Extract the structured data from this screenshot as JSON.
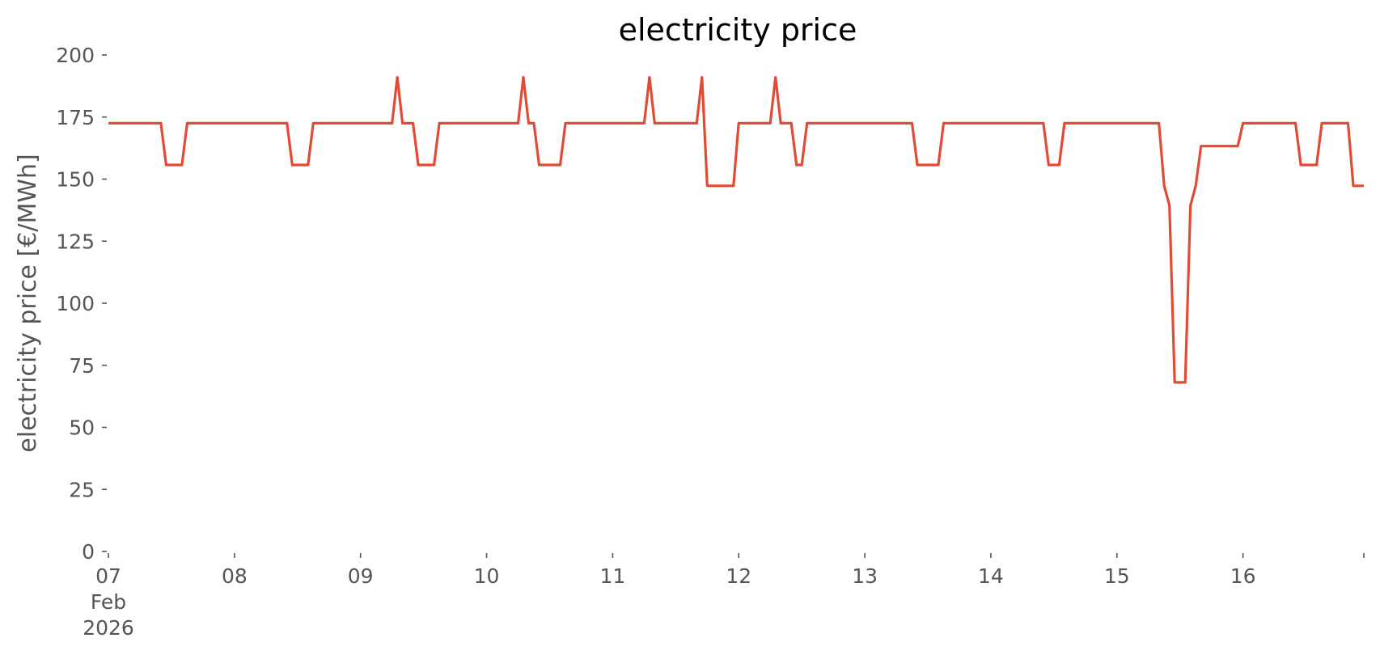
{
  "chart_data": {
    "type": "line",
    "title": "electricity price",
    "xlabel": "",
    "ylabel": "electricity price [€/MWh]",
    "ylim": [
      0,
      200
    ],
    "xlim": [
      "2026-02-07 00:00",
      "2026-02-16 23:00"
    ],
    "grid": false,
    "line_color": "#E24A33",
    "y_ticks": [
      "0",
      "25",
      "50",
      "75",
      "100",
      "125",
      "150",
      "175",
      "200"
    ],
    "x_ticks": [
      {
        "day": "07",
        "month": "Feb",
        "year": "2026"
      },
      {
        "day": "08"
      },
      {
        "day": "09"
      },
      {
        "day": "10"
      },
      {
        "day": "11"
      },
      {
        "day": "12"
      },
      {
        "day": "13"
      },
      {
        "day": "14"
      },
      {
        "day": "15"
      },
      {
        "day": "16"
      }
    ],
    "series": [
      {
        "points": [
          [
            "2026-02-07 00:00",
            172.5
          ],
          [
            "2026-02-07 10:00",
            172.5
          ],
          [
            "2026-02-07 11:00",
            155.7
          ],
          [
            "2026-02-07 14:00",
            155.7
          ],
          [
            "2026-02-07 15:00",
            172.5
          ],
          [
            "2026-02-08 10:00",
            172.5
          ],
          [
            "2026-02-08 11:00",
            155.7
          ],
          [
            "2026-02-08 14:00",
            155.7
          ],
          [
            "2026-02-08 15:00",
            172.5
          ],
          [
            "2026-02-09 06:00",
            172.5
          ],
          [
            "2026-02-09 07:00",
            191.0
          ],
          [
            "2026-02-09 08:00",
            172.5
          ],
          [
            "2026-02-09 10:00",
            172.5
          ],
          [
            "2026-02-09 11:00",
            155.7
          ],
          [
            "2026-02-09 14:00",
            155.7
          ],
          [
            "2026-02-09 15:00",
            172.5
          ],
          [
            "2026-02-10 06:00",
            172.5
          ],
          [
            "2026-02-10 07:00",
            191.0
          ],
          [
            "2026-02-10 08:00",
            172.5
          ],
          [
            "2026-02-10 09:00",
            172.5
          ],
          [
            "2026-02-10 10:00",
            155.7
          ],
          [
            "2026-02-10 14:00",
            155.7
          ],
          [
            "2026-02-10 15:00",
            172.5
          ],
          [
            "2026-02-11 06:00",
            172.5
          ],
          [
            "2026-02-11 07:00",
            191.0
          ],
          [
            "2026-02-11 08:00",
            172.5
          ],
          [
            "2026-02-11 16:00",
            172.5
          ],
          [
            "2026-02-11 17:00",
            191.0
          ],
          [
            "2026-02-11 18:00",
            147.3
          ],
          [
            "2026-02-11 23:00",
            147.3
          ],
          [
            "2026-02-12 00:00",
            172.5
          ],
          [
            "2026-02-12 06:00",
            172.5
          ],
          [
            "2026-02-12 07:00",
            191.0
          ],
          [
            "2026-02-12 08:00",
            172.5
          ],
          [
            "2026-02-12 10:00",
            172.5
          ],
          [
            "2026-02-12 11:00",
            155.7
          ],
          [
            "2026-02-12 12:00",
            155.7
          ],
          [
            "2026-02-12 13:00",
            172.5
          ],
          [
            "2026-02-13 09:00",
            172.5
          ],
          [
            "2026-02-13 10:00",
            155.7
          ],
          [
            "2026-02-13 14:00",
            155.7
          ],
          [
            "2026-02-13 15:00",
            172.5
          ],
          [
            "2026-02-14 10:00",
            172.5
          ],
          [
            "2026-02-14 11:00",
            155.7
          ],
          [
            "2026-02-14 13:00",
            155.7
          ],
          [
            "2026-02-14 14:00",
            172.5
          ],
          [
            "2026-02-15 08:00",
            172.5
          ],
          [
            "2026-02-15 09:00",
            147.3
          ],
          [
            "2026-02-15 10:00",
            139.4
          ],
          [
            "2026-02-15 11:00",
            68.1
          ],
          [
            "2026-02-15 13:00",
            68.1
          ],
          [
            "2026-02-15 14:00",
            139.4
          ],
          [
            "2026-02-15 15:00",
            147.3
          ],
          [
            "2026-02-15 16:00",
            163.3
          ],
          [
            "2026-02-15 23:00",
            163.3
          ],
          [
            "2026-02-16 00:00",
            172.5
          ],
          [
            "2026-02-16 10:00",
            172.5
          ],
          [
            "2026-02-16 11:00",
            155.7
          ],
          [
            "2026-02-16 14:00",
            155.7
          ],
          [
            "2026-02-16 15:00",
            172.5
          ],
          [
            "2026-02-16 20:00",
            172.5
          ],
          [
            "2026-02-16 21:00",
            147.3
          ],
          [
            "2026-02-16 23:00",
            147.3
          ]
        ]
      }
    ]
  }
}
